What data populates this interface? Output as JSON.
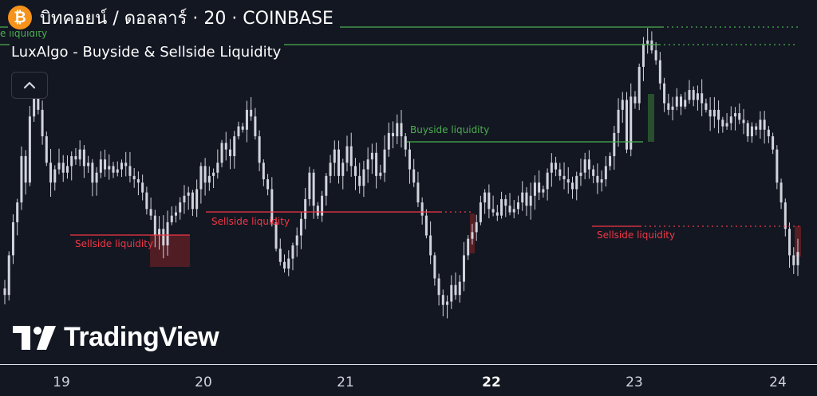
{
  "header": {
    "coin_glyph": "₿",
    "symbol_title": "บิทคอยน์ / ดอลลาร์ · 20 · COINBASE"
  },
  "indicator": {
    "title": "LuxAlgo - Buyside & Sellside Liquidity",
    "collapse_icon": "chevron-up-icon"
  },
  "watermark": {
    "text": "TradingView"
  },
  "time_axis": {
    "ticks": [
      {
        "label": "19",
        "bold": false
      },
      {
        "label": "20",
        "bold": false
      },
      {
        "label": "21",
        "bold": false
      },
      {
        "label": "22",
        "bold": true
      },
      {
        "label": "23",
        "bold": false
      },
      {
        "label": "24",
        "bold": false
      }
    ]
  },
  "colors": {
    "background": "#131722",
    "candle": "#d1d4dc",
    "buyside": "#4caf50",
    "sellside": "#f23645",
    "sellside_zone": "#5c1f24",
    "buyside_zone": "#2e5e32",
    "coin": "#f7931a"
  },
  "chart_data": {
    "type": "candlestick",
    "symbol": "บิทคอยน์ / ดอลลาร์",
    "interval": "20",
    "exchange": "COINBASE",
    "x_labels": [
      "19",
      "20",
      "21",
      "22",
      "23",
      "24"
    ],
    "price_scale": "none",
    "series": [
      {
        "close": [
          60,
          120,
          170,
          200,
          270,
          230,
          330,
          380,
          340,
          300,
          260,
          230,
          250,
          260,
          245,
          255,
          270,
          265,
          280,
          255,
          260,
          230,
          245,
          265,
          250,
          255,
          245,
          250,
          260,
          255,
          240,
          235,
          230,
          215,
          190,
          180,
          150,
          160,
          135,
          170,
          180,
          185,
          200,
          210,
          215,
          190,
          220,
          255,
          230,
          240,
          245,
          260,
          290,
          280,
          270,
          300,
          315,
          310,
          340,
          330,
          300,
          260,
          235,
          220,
          170,
          130,
          110,
          100,
          115,
          135,
          150,
          175,
          205,
          245,
          195,
          180,
          210,
          240,
          260,
          280,
          240,
          260,
          285,
          255,
          240,
          225,
          250,
          265,
          275,
          240,
          245,
          280,
          305,
          300,
          320,
          300,
          280,
          250,
          230,
          200,
          180,
          150,
          120,
          85,
          60,
          45,
          50,
          75,
          60,
          80,
          120,
          145,
          155,
          170,
          200,
          215,
          190,
          185,
          180,
          205,
          195,
          185,
          190,
          200,
          215,
          195,
          210,
          230,
          215,
          220,
          245,
          260,
          250,
          240,
          235,
          230,
          220,
          240,
          245,
          265,
          250,
          240,
          230,
          235,
          255,
          270,
          305,
          340,
          355,
          280,
          360,
          350,
          405,
          440,
          445,
          430,
          415,
          380,
          350,
          340,
          345,
          360,
          345,
          355,
          370,
          355,
          365,
          350,
          340,
          330,
          340,
          325,
          315,
          320,
          330,
          335,
          325,
          320,
          300,
          315,
          310,
          325,
          310,
          300,
          280,
          230,
          200,
          160,
          120,
          105,
          125
        ]
      }
    ],
    "liquidity_levels": [
      {
        "label": "Buyside liquidity",
        "side": "buyside",
        "price": 330
      },
      {
        "label": "Sellside liquidity",
        "side": "sellside",
        "price": 215
      },
      {
        "label": "Sellside liquidity",
        "side": "sellside",
        "price": 245
      },
      {
        "label": "Sellside liquidity",
        "side": "sellside",
        "price": 200
      },
      {
        "label": "e liquidity",
        "side": "buyside",
        "price": 430
      },
      {
        "label": "",
        "side": "buyside",
        "price": 455
      }
    ],
    "grid": false,
    "legend": "none"
  }
}
